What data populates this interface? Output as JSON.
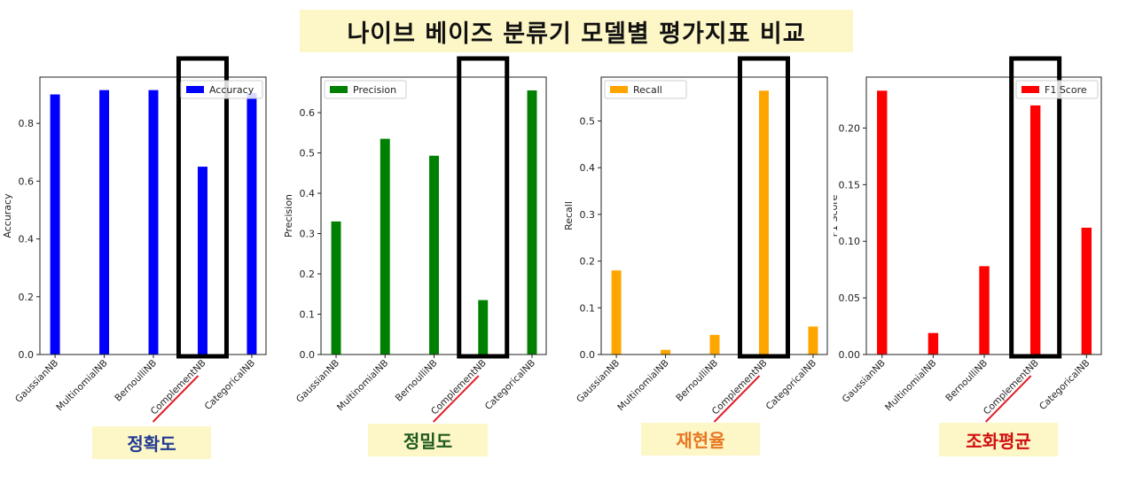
{
  "title": "나이브 베이즈 분류기 모델별 평가지표 비교",
  "captions": [
    "정확도",
    "정밀도",
    "재현율",
    "조화평균"
  ],
  "highlight_category": "ComplementNB",
  "chart_data": [
    {
      "type": "bar",
      "categories": [
        "GaussianNB",
        "MultinomialNB",
        "BernoulliNB",
        "ComplementNB",
        "CategoricalNB"
      ],
      "series": [
        {
          "name": "Accuracy",
          "values": [
            0.9,
            0.915,
            0.915,
            0.65,
            0.905
          ],
          "color": "#0000ff"
        }
      ],
      "ylabel": "Accuracy",
      "yticks": [
        "0.0",
        "0.2",
        "0.4",
        "0.6",
        "0.8"
      ],
      "ylim": [
        0,
        0.96
      ],
      "legend": "top-right"
    },
    {
      "type": "bar",
      "categories": [
        "GaussianNB",
        "MultinomialNB",
        "BernoulliNB",
        "ComplementNB",
        "CategoricalNB"
      ],
      "series": [
        {
          "name": "Precision",
          "values": [
            0.33,
            0.535,
            0.493,
            0.135,
            0.655
          ],
          "color": "#008000"
        }
      ],
      "ylabel": "Precision",
      "yticks": [
        "0.0",
        "0.1",
        "0.2",
        "0.3",
        "0.4",
        "0.5",
        "0.6"
      ],
      "ylim": [
        0,
        0.688
      ],
      "legend": "top-left"
    },
    {
      "type": "bar",
      "categories": [
        "GaussianNB",
        "MultinomialNB",
        "BernoulliNB",
        "ComplementNB",
        "CategoricalNB"
      ],
      "series": [
        {
          "name": "Recall",
          "values": [
            0.18,
            0.01,
            0.042,
            0.565,
            0.06
          ],
          "color": "#ffa500"
        }
      ],
      "ylabel": "Recall",
      "yticks": [
        "0.0",
        "0.1",
        "0.2",
        "0.3",
        "0.4",
        "0.5"
      ],
      "ylim": [
        0,
        0.594
      ],
      "legend": "top-left"
    },
    {
      "type": "bar",
      "categories": [
        "GaussianNB",
        "MultinomialNB",
        "BernoulliNB",
        "ComplementNB",
        "CategoricalNB"
      ],
      "series": [
        {
          "name": "F1 Score",
          "values": [
            0.233,
            0.019,
            0.078,
            0.22,
            0.112
          ],
          "color": "#ff0000"
        }
      ],
      "ylabel": "F1 Score",
      "yticks": [
        "0.00",
        "0.05",
        "0.10",
        "0.15",
        "0.20"
      ],
      "ylim": [
        0,
        0.245
      ],
      "legend": "top-right"
    }
  ]
}
